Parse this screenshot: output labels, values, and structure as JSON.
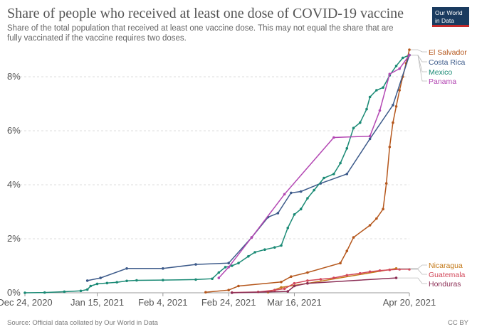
{
  "title": "Share of people who received at least one dose of COVID-19 vaccine",
  "subtitle": "Share of the total population that received at least one vaccine dose. This may not equal the share that are fully vaccinated if the vaccine requires two doses.",
  "logo": {
    "line1": "Our World",
    "line2": "in Data",
    "colors": {
      "bg": "#1a3b5f",
      "accent": "#c42a2a"
    }
  },
  "source": "Source: Official data collated by Our World in Data",
  "license": "CC BY",
  "chart_data": {
    "type": "line",
    "title": "Share of people who received at least one dose of COVID-19 vaccine",
    "x_ticks": [
      {
        "date": "2020-12-24",
        "label": "Dec 24, 2020"
      },
      {
        "date": "2021-01-15",
        "label": "Jan 15, 2021"
      },
      {
        "date": "2021-02-04",
        "label": "Feb 4, 2021"
      },
      {
        "date": "2021-02-24",
        "label": "Feb 24, 2021"
      },
      {
        "date": "2021-03-16",
        "label": "Mar 16, 2021"
      },
      {
        "date": "2021-04-20",
        "label": "Apr 20, 2021"
      }
    ],
    "y_ticks": [
      {
        "value": 0,
        "label": "0%"
      },
      {
        "value": 2,
        "label": "2%"
      },
      {
        "value": 4,
        "label": "4%"
      },
      {
        "value": 6,
        "label": "6%"
      },
      {
        "value": 8,
        "label": "8%"
      }
    ],
    "xlim": [
      "2020-12-24",
      "2021-04-20"
    ],
    "ylim": [
      0,
      9
    ],
    "grid": "horizontal dashed",
    "legend": "right, labels at line ends",
    "series": [
      {
        "name": "El Salvador",
        "color": "#b5571c",
        "points": [
          [
            "2021-02-17",
            0.02
          ],
          [
            "2021-02-24",
            0.1
          ],
          [
            "2021-02-27",
            0.25
          ],
          [
            "2021-03-12",
            0.4
          ],
          [
            "2021-03-15",
            0.6
          ],
          [
            "2021-03-20",
            0.75
          ],
          [
            "2021-03-30",
            1.1
          ],
          [
            "2021-04-01",
            1.55
          ],
          [
            "2021-04-03",
            2.05
          ],
          [
            "2021-04-08",
            2.5
          ],
          [
            "2021-04-10",
            2.75
          ],
          [
            "2021-04-12",
            3.1
          ],
          [
            "2021-04-13",
            4.05
          ],
          [
            "2021-04-14",
            5.4
          ],
          [
            "2021-04-15",
            6.3
          ],
          [
            "2021-04-16",
            6.9
          ],
          [
            "2021-04-17",
            7.5
          ],
          [
            "2021-04-18",
            8.0
          ],
          [
            "2021-04-19",
            8.5
          ],
          [
            "2021-04-20",
            9.0
          ]
        ]
      },
      {
        "name": "Costa Rica",
        "color": "#3c5a8a",
        "points": [
          [
            "2021-01-12",
            0.45
          ],
          [
            "2021-01-16",
            0.55
          ],
          [
            "2021-01-24",
            0.9
          ],
          [
            "2021-02-04",
            0.9
          ],
          [
            "2021-02-14",
            1.05
          ],
          [
            "2021-02-24",
            1.1
          ],
          [
            "2021-03-03",
            2.05
          ],
          [
            "2021-03-08",
            2.8
          ],
          [
            "2021-03-11",
            2.95
          ],
          [
            "2021-03-15",
            3.7
          ],
          [
            "2021-03-18",
            3.75
          ],
          [
            "2021-03-24",
            4.05
          ],
          [
            "2021-04-01",
            4.4
          ],
          [
            "2021-04-08",
            5.7
          ],
          [
            "2021-04-15",
            6.95
          ],
          [
            "2021-04-20",
            8.8
          ]
        ]
      },
      {
        "name": "Mexico",
        "color": "#1a8a75",
        "points": [
          [
            "2020-12-24",
            0.0
          ],
          [
            "2020-12-30",
            0.01
          ],
          [
            "2021-01-05",
            0.04
          ],
          [
            "2021-01-10",
            0.07
          ],
          [
            "2021-01-12",
            0.12
          ],
          [
            "2021-01-13",
            0.25
          ],
          [
            "2021-01-15",
            0.33
          ],
          [
            "2021-01-18",
            0.36
          ],
          [
            "2021-01-21",
            0.39
          ],
          [
            "2021-01-24",
            0.44
          ],
          [
            "2021-01-27",
            0.46
          ],
          [
            "2021-02-04",
            0.47
          ],
          [
            "2021-02-14",
            0.49
          ],
          [
            "2021-02-19",
            0.52
          ],
          [
            "2021-02-21",
            0.75
          ],
          [
            "2021-02-23",
            0.95
          ],
          [
            "2021-02-25",
            1.0
          ],
          [
            "2021-02-27",
            1.1
          ],
          [
            "2021-03-02",
            1.35
          ],
          [
            "2021-03-04",
            1.5
          ],
          [
            "2021-03-07",
            1.6
          ],
          [
            "2021-03-10",
            1.68
          ],
          [
            "2021-03-12",
            1.75
          ],
          [
            "2021-03-14",
            2.4
          ],
          [
            "2021-03-16",
            2.9
          ],
          [
            "2021-03-18",
            3.1
          ],
          [
            "2021-03-20",
            3.5
          ],
          [
            "2021-03-22",
            3.8
          ],
          [
            "2021-03-25",
            4.25
          ],
          [
            "2021-03-28",
            4.4
          ],
          [
            "2021-03-30",
            4.8
          ],
          [
            "2021-04-01",
            5.35
          ],
          [
            "2021-04-03",
            6.1
          ],
          [
            "2021-04-05",
            6.3
          ],
          [
            "2021-04-07",
            6.8
          ],
          [
            "2021-04-08",
            7.25
          ],
          [
            "2021-04-10",
            7.5
          ],
          [
            "2021-04-12",
            7.6
          ],
          [
            "2021-04-14",
            8.05
          ],
          [
            "2021-04-16",
            8.4
          ],
          [
            "2021-04-18",
            8.7
          ],
          [
            "2021-04-20",
            8.8
          ]
        ]
      },
      {
        "name": "Panama",
        "color": "#b347b3",
        "points": [
          [
            "2021-02-21",
            0.55
          ],
          [
            "2021-02-24",
            0.95
          ],
          [
            "2021-03-03",
            2.05
          ],
          [
            "2021-03-13",
            3.65
          ],
          [
            "2021-03-28",
            5.75
          ],
          [
            "2021-04-08",
            5.8
          ],
          [
            "2021-04-11",
            6.75
          ],
          [
            "2021-04-14",
            8.1
          ],
          [
            "2021-04-17",
            8.3
          ],
          [
            "2021-04-20",
            8.8
          ]
        ]
      },
      {
        "name": "Nicaragua",
        "color": "#c47a1a",
        "points": [
          [
            "2021-03-08",
            0.02
          ],
          [
            "2021-03-12",
            0.2
          ],
          [
            "2021-03-20",
            0.35
          ],
          [
            "2021-04-16",
            0.9
          ]
        ]
      },
      {
        "name": "Guatemala",
        "color": "#d2485a",
        "points": [
          [
            "2021-02-25",
            0.01
          ],
          [
            "2021-03-05",
            0.03
          ],
          [
            "2021-03-10",
            0.1
          ],
          [
            "2021-03-13",
            0.15
          ],
          [
            "2021-03-16",
            0.35
          ],
          [
            "2021-03-20",
            0.45
          ],
          [
            "2021-03-24",
            0.5
          ],
          [
            "2021-03-28",
            0.55
          ],
          [
            "2021-04-01",
            0.65
          ],
          [
            "2021-04-05",
            0.72
          ],
          [
            "2021-04-08",
            0.78
          ],
          [
            "2021-04-11",
            0.82
          ],
          [
            "2021-04-14",
            0.85
          ],
          [
            "2021-04-17",
            0.87
          ],
          [
            "2021-04-20",
            0.87
          ]
        ]
      },
      {
        "name": "Honduras",
        "color": "#8c2f56",
        "points": [
          [
            "2021-02-25",
            0.0
          ],
          [
            "2021-03-14",
            0.05
          ],
          [
            "2021-03-16",
            0.25
          ],
          [
            "2021-03-20",
            0.35
          ],
          [
            "2021-04-16",
            0.55
          ]
        ]
      }
    ]
  }
}
